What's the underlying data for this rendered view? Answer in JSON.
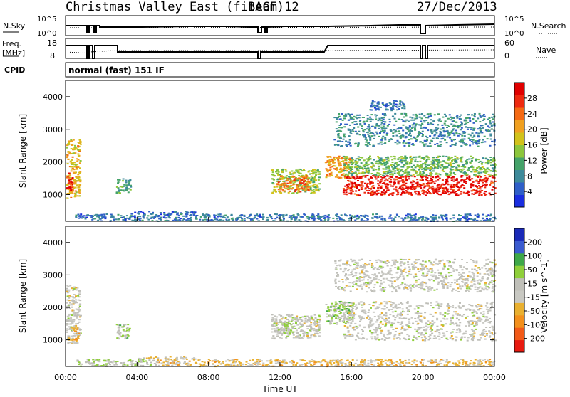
{
  "header": {
    "title": "Christmas Valley East (fitACF)",
    "beam": "Beam 12",
    "date": "27/Dec/2013"
  },
  "params": {
    "nsky_label": "N.Sky",
    "nsearch_label": "N.Search",
    "freq_label_1": "Freq.",
    "freq_label_2": "[MHz]",
    "nave_label": "Nave",
    "cpid_label": "CPID",
    "cpid_value": "normal (fast) 151 IF",
    "noise_ticks_left": [
      "10^5",
      "10^0"
    ],
    "noise_ticks_right": [
      "10^5",
      "10^0"
    ],
    "freq_ticks": [
      "18",
      "8"
    ],
    "nave_ticks": [
      "60",
      "0"
    ]
  },
  "colors": {
    "power_scale": [
      "#1a2ee0",
      "#2f5fc8",
      "#3d8a9a",
      "#45a36a",
      "#8cc63c",
      "#d2c21a",
      "#f0a020",
      "#f56a14",
      "#ee2a10",
      "#e00000"
    ],
    "velocity_scale": [
      "#e81a10",
      "#f25a18",
      "#f3901c",
      "#e9b030",
      "#c8c8c2",
      "#bfbfb8",
      "#8fcf3a",
      "#3ea848",
      "#3a5bd0",
      "#1a2ab8"
    ]
  },
  "chart_data": [
    {
      "type": "heatmap",
      "name": "power",
      "ylabel": "Slant Range [km]",
      "y_ticks": [
        "4000",
        "3000",
        "2000",
        "1000"
      ],
      "ylim": [
        180,
        4500
      ],
      "xlim": [
        0,
        24
      ],
      "colorbar_label": "Power [dB]",
      "colorbar_ticks": [
        "28",
        "24",
        "20",
        "16",
        "12",
        "8",
        "4"
      ],
      "colorbar_range": [
        0,
        30
      ],
      "regions": [
        {
          "t": [
            0.0,
            0.8
          ],
          "r": [
            900,
            2700
          ],
          "level": 18
        },
        {
          "t": [
            0.0,
            0.35
          ],
          "r": [
            1150,
            1700
          ],
          "level": 27
        },
        {
          "t": [
            2.8,
            3.6
          ],
          "r": [
            1050,
            1500
          ],
          "level": 10
        },
        {
          "t": [
            11.5,
            14.2
          ],
          "r": [
            1050,
            1800
          ],
          "level": 14
        },
        {
          "t": [
            11.8,
            13.6
          ],
          "r": [
            1100,
            1600
          ],
          "level": 22
        },
        {
          "t": [
            14.5,
            16.0
          ],
          "r": [
            1500,
            2200
          ],
          "level": 20
        },
        {
          "t": [
            15.5,
            24.0
          ],
          "r": [
            1000,
            1600
          ],
          "level": 27
        },
        {
          "t": [
            15.5,
            24.0
          ],
          "r": [
            1600,
            2200
          ],
          "level": 12
        },
        {
          "t": [
            15.0,
            24.0
          ],
          "r": [
            2500,
            3500
          ],
          "level": 8
        },
        {
          "t": [
            17.0,
            19.0
          ],
          "r": [
            3600,
            3900
          ],
          "level": 6
        },
        {
          "t": [
            3.5,
            7.2
          ],
          "r": [
            420,
            500
          ],
          "level": 5
        },
        {
          "t": [
            0.5,
            24.0
          ],
          "r": [
            200,
            420
          ],
          "level": 6
        }
      ]
    },
    {
      "type": "heatmap",
      "name": "velocity",
      "ylabel": "Slant Range [km]",
      "y_ticks": [
        "4000",
        "3000",
        "2000",
        "1000"
      ],
      "ylim": [
        180,
        4500
      ],
      "xlim": [
        0,
        24
      ],
      "xlabel": "Time UT",
      "x_ticks": [
        "00:00",
        "04:00",
        "08:00",
        "12:00",
        "16:00",
        "20:00",
        "00:00"
      ],
      "colorbar_label": "Velocity [m s^-1]",
      "colorbar_ticks": [
        "200",
        "100",
        "50",
        "15",
        "-15",
        "-50",
        "-100",
        "-200"
      ],
      "colorbar_range": [
        -250,
        250
      ],
      "regions": [
        {
          "t": [
            0.0,
            0.8
          ],
          "r": [
            900,
            2700
          ],
          "level": 0
        },
        {
          "t": [
            0.3,
            0.7
          ],
          "r": [
            1000,
            1500
          ],
          "level": -70
        },
        {
          "t": [
            2.8,
            3.6
          ],
          "r": [
            1050,
            1500
          ],
          "level": 50
        },
        {
          "t": [
            11.5,
            14.2
          ],
          "r": [
            1050,
            1800
          ],
          "level": 0
        },
        {
          "t": [
            11.8,
            12.6
          ],
          "r": [
            1100,
            1600
          ],
          "level": 45
        },
        {
          "t": [
            14.5,
            16.0
          ],
          "r": [
            1500,
            2200
          ],
          "level": 55
        },
        {
          "t": [
            15.5,
            24.0
          ],
          "r": [
            1000,
            2200
          ],
          "level": 0
        },
        {
          "t": [
            15.0,
            24.0
          ],
          "r": [
            2500,
            3500
          ],
          "level": 0
        },
        {
          "t": [
            4.0,
            7.2
          ],
          "r": [
            420,
            500
          ],
          "level": -40
        },
        {
          "t": [
            5.0,
            24.0
          ],
          "r": [
            200,
            420
          ],
          "level": -60
        },
        {
          "t": [
            0.5,
            5.0
          ],
          "r": [
            200,
            420
          ],
          "level": 40
        }
      ]
    }
  ]
}
